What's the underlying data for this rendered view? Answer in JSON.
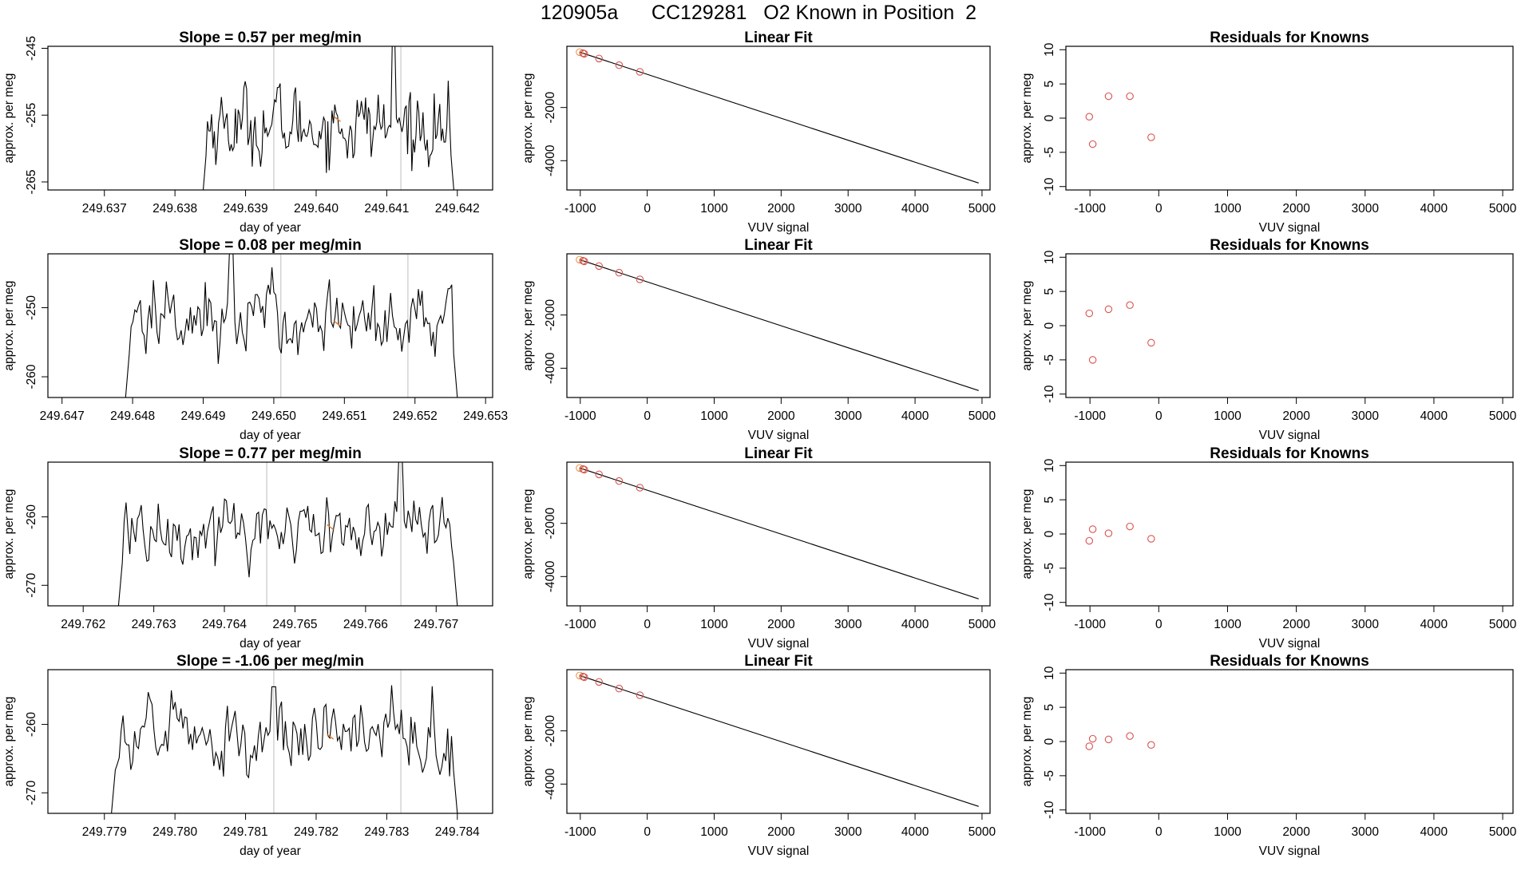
{
  "figure": {
    "title": "120905a      CC129281   O2 Known in Position  2"
  },
  "colors": {
    "line": "#000000",
    "marker": "#e07b30",
    "residual": "#d9534f",
    "vline": "#c8c8c8",
    "fit_points": [
      "#e69a4a",
      "#d9534f",
      "#d9534f",
      "#d9534f",
      "#d9534f",
      "#d9534f"
    ]
  },
  "chart_data": [
    {
      "type": "line",
      "row": 0,
      "col": 0,
      "title": "Slope =  0.57  per meg/min",
      "xlabel": "day of year",
      "ylabel": "approx. per meg",
      "xlim": [
        249.6362,
        249.6425
      ],
      "ylim": [
        -266.2,
        -244.7
      ],
      "xticks": [
        "249.637",
        "249.638",
        "249.639",
        "249.640",
        "249.641",
        "249.642"
      ],
      "yticks": [
        "-245",
        "-255",
        "-265"
      ],
      "x_start": 249.6384,
      "x_end": 249.64195,
      "y_min": -266.2,
      "y_max": -244.7,
      "y_mean": -256.5,
      "y_sd": 2.6,
      "vlines": [
        249.6394,
        249.6412
      ],
      "marker": [
        249.6403,
        -255.6
      ],
      "peak": [
        249.6411,
        -244.7
      ]
    },
    {
      "type": "line",
      "row": 0,
      "col": 1,
      "title": "Linear Fit",
      "xlabel": "VUV signal",
      "ylabel": "approx. per meg",
      "xlim": [
        -1200,
        5120
      ],
      "ylim": [
        -5100,
        300
      ],
      "xticks": [
        "-1000",
        "0",
        "1000",
        "2000",
        "3000",
        "4000",
        "5000"
      ],
      "yticks": [
        "-2000",
        "-4000"
      ],
      "line": [
        [
          -1010,
          80
        ],
        [
          4950,
          -4840
        ]
      ],
      "points": [
        [
          -1010,
          80
        ],
        [
          -960,
          40
        ],
        [
          -940,
          20
        ],
        [
          -720,
          -160
        ],
        [
          -420,
          -410
        ],
        [
          -110,
          -660
        ]
      ]
    },
    {
      "type": "scatter",
      "row": 0,
      "col": 2,
      "title": "Residuals for Knowns",
      "xlabel": "VUV signal",
      "ylabel": "approx. per meg",
      "xlim": [
        -1350,
        5150
      ],
      "ylim": [
        -10.5,
        10.5
      ],
      "xticks": [
        "-1000",
        "0",
        "1000",
        "2000",
        "3000",
        "4000",
        "5000"
      ],
      "yticks": [
        "-10",
        "-5",
        "0",
        "5",
        "10"
      ],
      "points": [
        [
          -1010,
          0.2
        ],
        [
          -960,
          -3.8
        ],
        [
          -730,
          3.2
        ],
        [
          -420,
          3.2
        ],
        [
          -110,
          -2.8
        ]
      ]
    },
    {
      "type": "line",
      "row": 1,
      "col": 0,
      "title": "Slope =  0.08  per meg/min",
      "xlabel": "day of year",
      "ylabel": "approx. per meg",
      "xlim": [
        249.6468,
        249.6531
      ],
      "ylim": [
        -263,
        -242.2
      ],
      "xticks": [
        "249.647",
        "249.648",
        "249.649",
        "249.650",
        "249.651",
        "249.652",
        "249.653"
      ],
      "yticks": [
        "-250",
        "-260"
      ],
      "x_start": 249.6479,
      "x_end": 249.6526,
      "y_min": -263,
      "y_max": -242.2,
      "y_mean": -251.5,
      "y_sd": 2.5,
      "vlines": [
        249.6501,
        249.6519
      ],
      "marker": [
        249.6509,
        -252.3
      ],
      "peak": [
        249.6494,
        -242.2
      ]
    },
    {
      "type": "line",
      "row": 1,
      "col": 1,
      "title": "Linear Fit",
      "xlabel": "VUV signal",
      "ylabel": "approx. per meg",
      "xlim": [
        -1200,
        5120
      ],
      "ylim": [
        -5100,
        300
      ],
      "xticks": [
        "-1000",
        "0",
        "1000",
        "2000",
        "3000",
        "4000",
        "5000"
      ],
      "yticks": [
        "-2000",
        "-4000"
      ],
      "line": [
        [
          -1010,
          80
        ],
        [
          4950,
          -4840
        ]
      ],
      "points": [
        [
          -1010,
          80
        ],
        [
          -960,
          40
        ],
        [
          -940,
          20
        ],
        [
          -720,
          -160
        ],
        [
          -420,
          -410
        ],
        [
          -110,
          -660
        ]
      ]
    },
    {
      "type": "scatter",
      "row": 1,
      "col": 2,
      "title": "Residuals for Knowns",
      "xlabel": "VUV signal",
      "ylabel": "approx. per meg",
      "xlim": [
        -1350,
        5150
      ],
      "ylim": [
        -10.5,
        10.5
      ],
      "xticks": [
        "-1000",
        "0",
        "1000",
        "2000",
        "3000",
        "4000",
        "5000"
      ],
      "yticks": [
        "-10",
        "-5",
        "0",
        "5",
        "10"
      ],
      "points": [
        [
          -1010,
          1.8
        ],
        [
          -960,
          -5.0
        ],
        [
          -730,
          2.4
        ],
        [
          -420,
          3.0
        ],
        [
          -110,
          -2.5
        ]
      ]
    },
    {
      "type": "line",
      "row": 2,
      "col": 0,
      "title": "Slope =  0.77  per meg/min",
      "xlabel": "day of year",
      "ylabel": "approx. per meg",
      "xlim": [
        249.7615,
        249.7678
      ],
      "ylim": [
        -273,
        -252
      ],
      "xticks": [
        "249.762",
        "249.763",
        "249.764",
        "249.765",
        "249.766",
        "249.767"
      ],
      "yticks": [
        "-260",
        "-270"
      ],
      "x_start": 249.7625,
      "x_end": 249.7673,
      "y_min": -273,
      "y_max": -252,
      "y_mean": -261.5,
      "y_sd": 2.5,
      "vlines": [
        249.7646,
        249.7665
      ],
      "marker": [
        249.7655,
        -261.5
      ],
      "peak": [
        249.7665,
        -252
      ]
    },
    {
      "type": "line",
      "row": 2,
      "col": 1,
      "title": "Linear Fit",
      "xlabel": "VUV signal",
      "ylabel": "approx. per meg",
      "xlim": [
        -1200,
        5120
      ],
      "ylim": [
        -5100,
        300
      ],
      "xticks": [
        "-1000",
        "0",
        "1000",
        "2000",
        "3000",
        "4000",
        "5000"
      ],
      "yticks": [
        "-2000",
        "-4000"
      ],
      "line": [
        [
          -1010,
          80
        ],
        [
          4950,
          -4840
        ]
      ],
      "points": [
        [
          -1010,
          80
        ],
        [
          -960,
          40
        ],
        [
          -940,
          20
        ],
        [
          -720,
          -160
        ],
        [
          -420,
          -410
        ],
        [
          -110,
          -660
        ]
      ]
    },
    {
      "type": "scatter",
      "row": 2,
      "col": 2,
      "title": "Residuals for Knowns",
      "xlabel": "VUV signal",
      "ylabel": "approx. per meg",
      "xlim": [
        -1350,
        5150
      ],
      "ylim": [
        -10.5,
        10.5
      ],
      "xticks": [
        "-1000",
        "0",
        "1000",
        "2000",
        "3000",
        "4000",
        "5000"
      ],
      "yticks": [
        "-10",
        "-5",
        "0",
        "5",
        "10"
      ],
      "points": [
        [
          -1010,
          -1.0
        ],
        [
          -960,
          0.7
        ],
        [
          -730,
          0.1
        ],
        [
          -420,
          1.1
        ],
        [
          -110,
          -0.7
        ]
      ]
    },
    {
      "type": "line",
      "row": 3,
      "col": 0,
      "title": "Slope =  -1.06  per meg/min",
      "xlabel": "day of year",
      "ylabel": "approx. per meg",
      "xlim": [
        249.7782,
        249.7845
      ],
      "ylim": [
        -273,
        -252
      ],
      "xticks": [
        "249.779",
        "249.780",
        "249.781",
        "249.782",
        "249.783",
        "249.784"
      ],
      "yticks": [
        "-260",
        "-270"
      ],
      "x_start": 249.7791,
      "x_end": 249.784,
      "y_min": -273,
      "y_max": -252,
      "y_mean": -261.5,
      "y_sd": 2.3,
      "vlines": [
        249.7814,
        249.7832
      ],
      "marker": [
        249.7822,
        -261.8
      ],
      "peak": [
        249.7814,
        -254.5
      ]
    },
    {
      "type": "line",
      "row": 3,
      "col": 1,
      "title": "Linear Fit",
      "xlabel": "VUV signal",
      "ylabel": "approx. per meg",
      "xlim": [
        -1200,
        5120
      ],
      "ylim": [
        -5100,
        300
      ],
      "xticks": [
        "-1000",
        "0",
        "1000",
        "2000",
        "3000",
        "4000",
        "5000"
      ],
      "yticks": [
        "-2000",
        "-4000"
      ],
      "line": [
        [
          -1010,
          80
        ],
        [
          4950,
          -4840
        ]
      ],
      "points": [
        [
          -1010,
          80
        ],
        [
          -960,
          40
        ],
        [
          -940,
          20
        ],
        [
          -720,
          -160
        ],
        [
          -420,
          -410
        ],
        [
          -110,
          -660
        ]
      ]
    },
    {
      "type": "scatter",
      "row": 3,
      "col": 2,
      "title": "Residuals for Knowns",
      "xlabel": "VUV signal",
      "ylabel": "approx. per meg",
      "xlim": [
        -1350,
        5150
      ],
      "ylim": [
        -10.5,
        10.5
      ],
      "xticks": [
        "-1000",
        "0",
        "1000",
        "2000",
        "3000",
        "4000",
        "5000"
      ],
      "yticks": [
        "-10",
        "-5",
        "0",
        "5",
        "10"
      ],
      "points": [
        [
          -1010,
          -0.7
        ],
        [
          -960,
          0.4
        ],
        [
          -730,
          0.3
        ],
        [
          -420,
          0.8
        ],
        [
          -110,
          -0.5
        ]
      ]
    }
  ]
}
